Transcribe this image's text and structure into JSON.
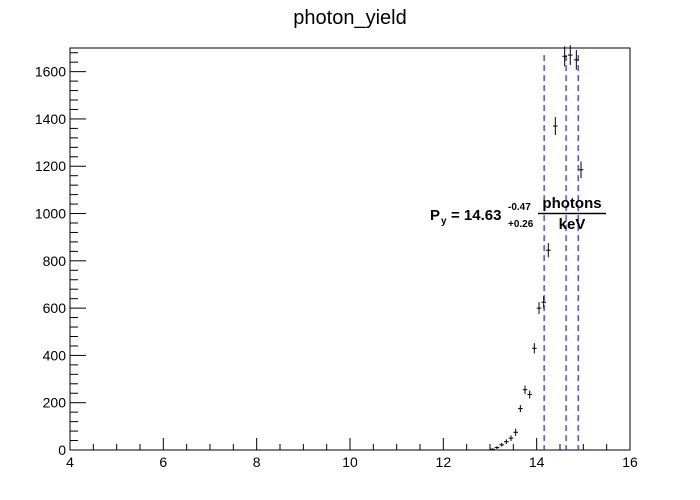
{
  "chart_data": {
    "type": "scatter",
    "title": "photon_yield",
    "xlabel": "",
    "ylabel": "",
    "xlim": [
      4,
      16
    ],
    "ylim": [
      0,
      1700
    ],
    "grid": false,
    "x_ticks": [
      "4",
      "6",
      "8",
      "10",
      "12",
      "14",
      "16"
    ],
    "y_ticks": [
      "0",
      "200",
      "400",
      "600",
      "800",
      "1000",
      "1200",
      "1400",
      "1600"
    ],
    "series": [
      {
        "x": [
          13.05,
          13.15,
          13.25,
          13.35,
          13.45,
          13.55,
          13.65,
          13.75,
          13.85,
          13.95,
          14.05,
          14.15,
          14.25,
          14.4,
          14.6,
          14.72,
          14.85,
          14.95
        ],
        "y": [
          3,
          10,
          22,
          35,
          50,
          75,
          175,
          255,
          235,
          430,
          600,
          625,
          845,
          1370,
          1665,
          1670,
          1650,
          1185
        ],
        "err": [
          4,
          6,
          8,
          10,
          12,
          15,
          15,
          18,
          17,
          22,
          25,
          26,
          30,
          38,
          42,
          42,
          42,
          35
        ]
      }
    ],
    "lines": [
      14.16,
      14.63,
      14.89
    ],
    "line_color": "#3333ff",
    "marker_color": "#000000",
    "annotation": {
      "symbol": "P",
      "subscript": "y",
      "value": "= 14.63",
      "sup": "-0.47",
      "sub": "+0.26",
      "numerator": "photons",
      "denominator": "keV"
    }
  }
}
